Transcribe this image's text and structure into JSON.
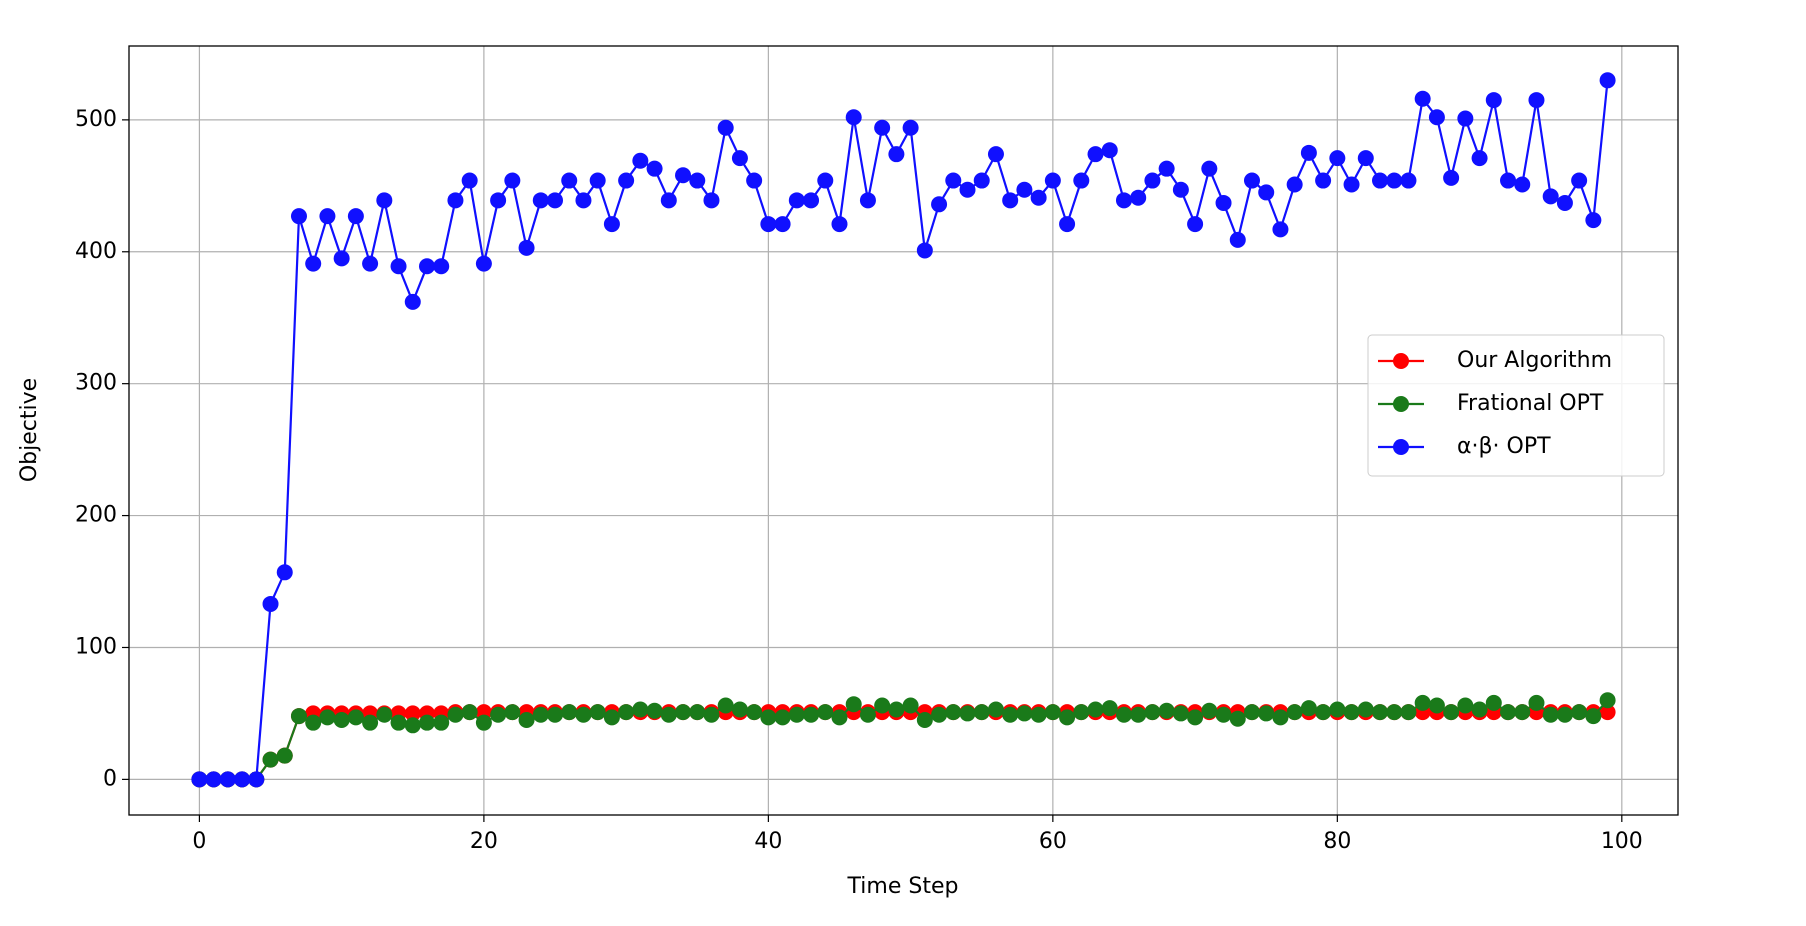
{
  "chart_data": {
    "type": "line",
    "x_label": "Time Step",
    "y_label": "Objective",
    "x": [
      0,
      1,
      2,
      3,
      4,
      5,
      6,
      7,
      8,
      9,
      10,
      11,
      12,
      13,
      14,
      15,
      16,
      17,
      18,
      19,
      20,
      21,
      22,
      23,
      24,
      25,
      26,
      27,
      28,
      29,
      30,
      31,
      32,
      33,
      34,
      35,
      36,
      37,
      38,
      39,
      40,
      41,
      42,
      43,
      44,
      45,
      46,
      47,
      48,
      49,
      50,
      51,
      52,
      53,
      54,
      55,
      56,
      57,
      58,
      59,
      60,
      61,
      62,
      63,
      64,
      65,
      66,
      67,
      68,
      69,
      70,
      71,
      72,
      73,
      74,
      75,
      76,
      77,
      78,
      79,
      80,
      81,
      82,
      83,
      84,
      85,
      86,
      87,
      88,
      89,
      90,
      91,
      92,
      93,
      94,
      95,
      96,
      97,
      98,
      99
    ],
    "series": [
      {
        "name": "Our Algorithm",
        "color": "#ff0000",
        "values": [
          0,
          0,
          0,
          0,
          0,
          15,
          18,
          48,
          50,
          50,
          50,
          50,
          50,
          50,
          50,
          50,
          50,
          50,
          51,
          51,
          51,
          51,
          51,
          51,
          51,
          51,
          51,
          51,
          51,
          51,
          51,
          51,
          51,
          51,
          51,
          51,
          51,
          51,
          51,
          51,
          51,
          51,
          51,
          51,
          51,
          51,
          51,
          51,
          51,
          51,
          51,
          51,
          51,
          51,
          51,
          51,
          51,
          51,
          51,
          51,
          51,
          51,
          51,
          51,
          51,
          51,
          51,
          51,
          51,
          51,
          51,
          51,
          51,
          51,
          51,
          51,
          51,
          51,
          51,
          51,
          51,
          51,
          51,
          51,
          51,
          51,
          51,
          51,
          51,
          51,
          51,
          51,
          51,
          51,
          51,
          51,
          51,
          51,
          51,
          51
        ]
      },
      {
        "name": "Frational OPT",
        "color": "#1a7a1a",
        "values": [
          0,
          0,
          0,
          0,
          0,
          15,
          18,
          48,
          43,
          47,
          45,
          47,
          43,
          49,
          43,
          41,
          43,
          43,
          49,
          51,
          43,
          49,
          51,
          45,
          49,
          49,
          51,
          49,
          51,
          47,
          51,
          53,
          52,
          49,
          51,
          51,
          49,
          56,
          53,
          51,
          47,
          47,
          49,
          49,
          51,
          47,
          57,
          49,
          56,
          53,
          56,
          45,
          49,
          51,
          50,
          51,
          53,
          49,
          50,
          49,
          51,
          47,
          51,
          53,
          54,
          49,
          49,
          51,
          52,
          50,
          47,
          52,
          49,
          46,
          51,
          50,
          47,
          51,
          54,
          51,
          53,
          51,
          53,
          51,
          51,
          51,
          58,
          56,
          51,
          56,
          53,
          58,
          51,
          51,
          58,
          49,
          49,
          51,
          48,
          60
        ]
      },
      {
        "name": "α·β· OPT",
        "color": "#1010ff",
        "values": [
          0,
          0,
          0,
          0,
          0,
          133,
          157,
          427,
          391,
          427,
          395,
          427,
          391,
          439,
          389,
          362,
          389,
          389,
          439,
          454,
          391,
          439,
          454,
          403,
          439,
          439,
          454,
          439,
          454,
          421,
          454,
          469,
          463,
          439,
          458,
          454,
          439,
          494,
          471,
          454,
          421,
          421,
          439,
          439,
          454,
          421,
          502,
          439,
          494,
          474,
          494,
          401,
          436,
          454,
          447,
          454,
          474,
          439,
          447,
          441,
          454,
          421,
          454,
          474,
          477,
          439,
          441,
          454,
          463,
          447,
          421,
          463,
          437,
          409,
          454,
          445,
          417,
          451,
          475,
          454,
          471,
          451,
          471,
          454,
          454,
          454,
          516,
          502,
          456,
          501,
          471,
          515,
          454,
          451,
          515,
          442,
          437,
          454,
          424,
          530
        ]
      }
    ],
    "xlim": [
      -4.95,
      103.95
    ],
    "ylim": [
      -27,
      556
    ],
    "xticks": [
      0,
      20,
      40,
      60,
      80,
      100
    ],
    "yticks": [
      0,
      100,
      200,
      300,
      400,
      500
    ],
    "grid": true,
    "legend": "center right"
  }
}
